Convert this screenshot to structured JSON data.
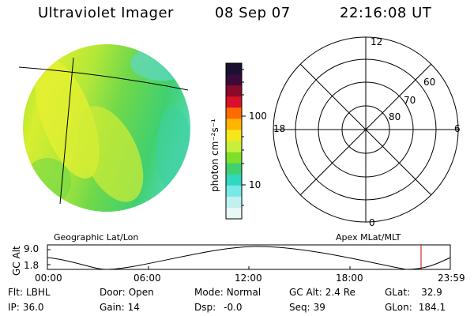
{
  "header": {
    "instrument": "Ultraviolet Imager",
    "date": "08 Sep 07",
    "time": "22:16:08 UT"
  },
  "colorbar": {
    "label": "photon cm⁻²s⁻¹",
    "ticks": [
      "100",
      "10"
    ],
    "colors": [
      "#1a1030",
      "#3a0a3a",
      "#8a0a2a",
      "#d8102a",
      "#ff6a00",
      "#ffb400",
      "#f5e81a",
      "#c8f03a",
      "#7ee02a",
      "#40d070",
      "#30d8c0",
      "#78e8e8",
      "#c0f0f0",
      "#e8f8f8"
    ]
  },
  "polar": {
    "hours": {
      "top": "12",
      "left": "18",
      "right": "6",
      "bottom": "0"
    },
    "latitudes": [
      "60",
      "70",
      "80"
    ]
  },
  "timeline": {
    "left_title": "Geographic Lat/Lon",
    "right_title": "Apex MLat/MLT",
    "ylabel": "GC Alt",
    "ytick_top": "9.0",
    "ytick_bottom": "1.8",
    "xticks": [
      "00:00",
      "06:00",
      "12:00",
      "18:00",
      "23:59"
    ],
    "marker_color": "#cc0000"
  },
  "status": {
    "filter": {
      "label": "Flt:",
      "value": "LBHL"
    },
    "door": {
      "label": "Door:",
      "value": "Open"
    },
    "mode": {
      "label": "Mode:",
      "value": "Normal"
    },
    "gc_alt": {
      "label": "GC Alt:",
      "value": "2.4 Re"
    },
    "glat": {
      "label": "GLat:",
      "value": "32.9"
    },
    "ip": {
      "label": "IP:",
      "value": "36.0"
    },
    "gain": {
      "label": "Gain:",
      "value": "14"
    },
    "dsp": {
      "label": "Dsp:",
      "value": "-0.0"
    },
    "seq": {
      "label": "Seq:",
      "value": "39"
    },
    "glon": {
      "label": "GLon:",
      "value": "184.1"
    }
  }
}
